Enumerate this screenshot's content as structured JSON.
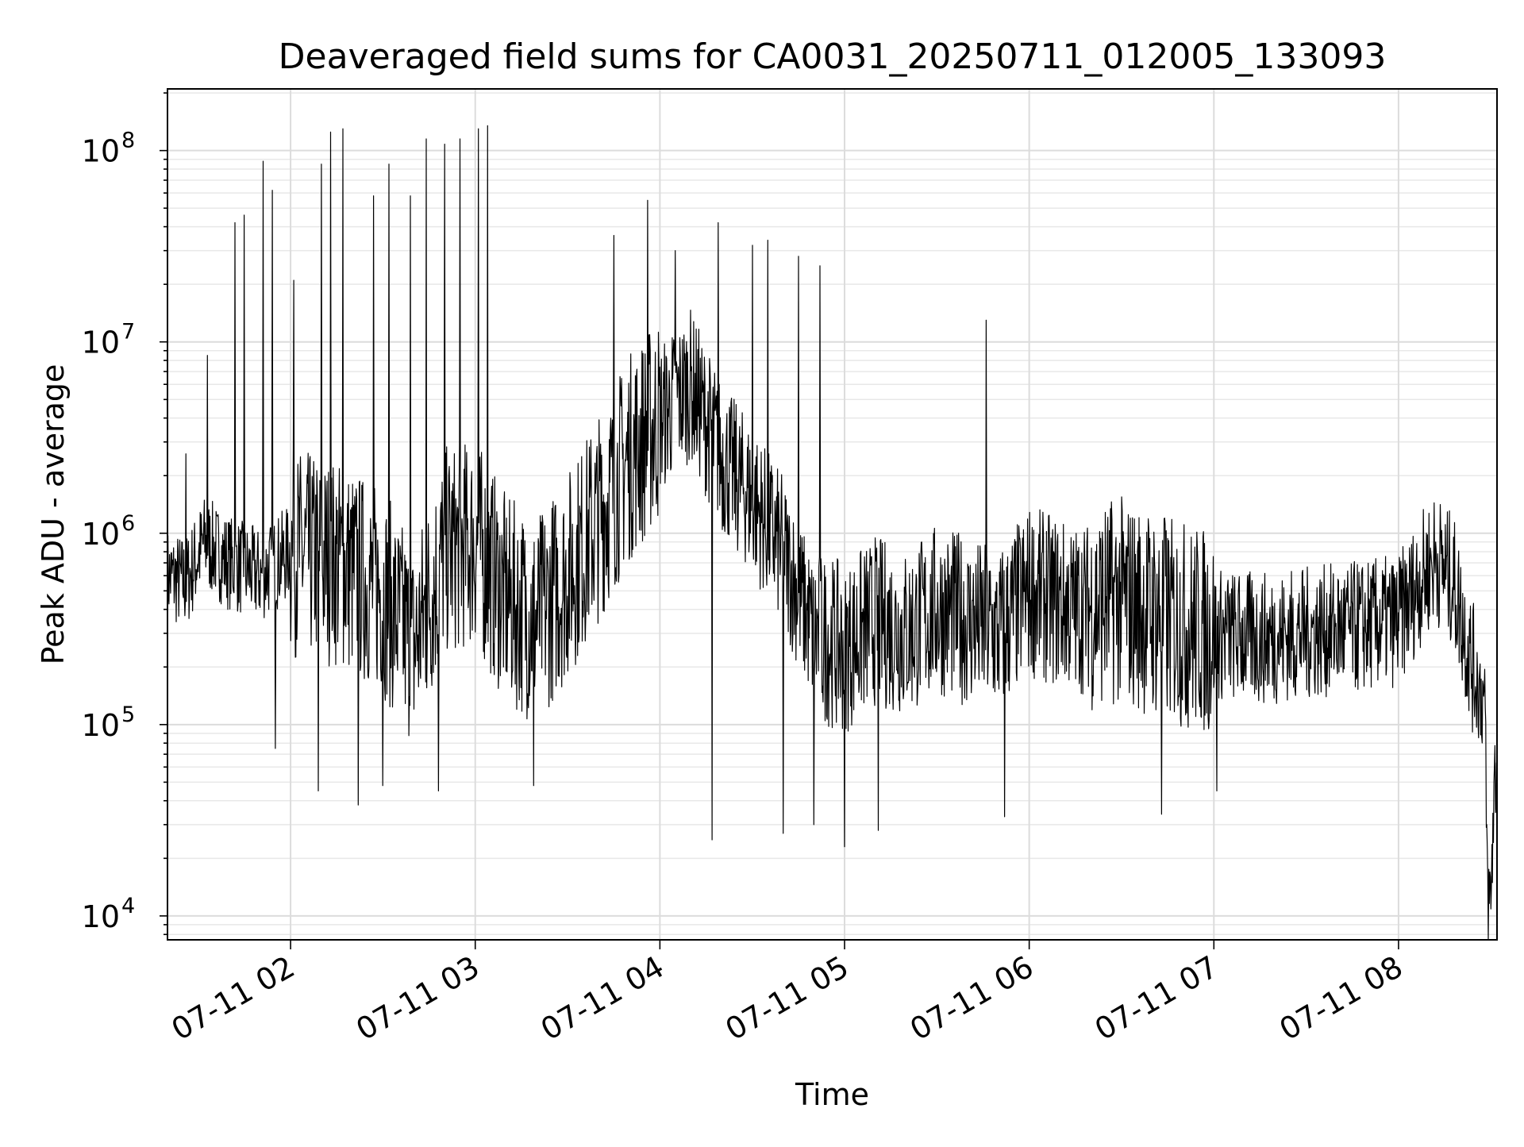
{
  "chart_data": {
    "type": "line",
    "title": "Deaveraged field sums for CA0031_20250711_012005_133093",
    "xlabel": "Time",
    "ylabel": "Peak ADU - average",
    "x_axis": {
      "kind": "datetime",
      "range": [
        "2025-07-11 01:20",
        "2025-07-11 08:32"
      ],
      "ticks": [
        {
          "value": "2025-07-11 02:00",
          "label": "07-11 02"
        },
        {
          "value": "2025-07-11 03:00",
          "label": "07-11 03"
        },
        {
          "value": "2025-07-11 04:00",
          "label": "07-11 04"
        },
        {
          "value": "2025-07-11 05:00",
          "label": "07-11 05"
        },
        {
          "value": "2025-07-11 06:00",
          "label": "07-11 06"
        },
        {
          "value": "2025-07-11 07:00",
          "label": "07-11 07"
        },
        {
          "value": "2025-07-11 08:00",
          "label": "07-11 08"
        }
      ],
      "tick_label_rotation_deg": 30
    },
    "y_axis": {
      "scale": "log",
      "range": [
        7500,
        210000000
      ],
      "ticks": [
        {
          "value": 10000,
          "base": "10",
          "exp": "4"
        },
        {
          "value": 100000,
          "base": "10",
          "exp": "5"
        },
        {
          "value": 1000000,
          "base": "10",
          "exp": "6"
        },
        {
          "value": 10000000,
          "base": "10",
          "exp": "7"
        },
        {
          "value": 100000000,
          "base": "10",
          "exp": "8"
        }
      ]
    },
    "grid": true,
    "minor_grid": true,
    "line_color": "#000000",
    "series": [
      {
        "points": [
          [
            "2025-07-11 01:20",
            600000
          ],
          [
            "2025-07-11 01:26",
            550000
          ],
          [
            "2025-07-11 01:32",
            900000
          ],
          [
            "2025-07-11 01:40",
            700000
          ],
          [
            "2025-07-11 01:50",
            600000
          ],
          [
            "2025-07-11 02:00",
            800000
          ],
          [
            "2025-07-11 02:15",
            700000
          ],
          [
            "2025-07-11 02:30",
            500000
          ],
          [
            "2025-07-11 02:40",
            250000
          ],
          [
            "2025-07-11 02:50",
            800000
          ],
          [
            "2025-07-11 03:00",
            900000
          ],
          [
            "2025-07-11 03:10",
            450000
          ],
          [
            "2025-07-11 03:20",
            350000
          ],
          [
            "2025-07-11 03:30",
            600000
          ],
          [
            "2025-07-11 03:40",
            1200000
          ],
          [
            "2025-07-11 03:50",
            2500000
          ],
          [
            "2025-07-11 04:00",
            4000000
          ],
          [
            "2025-07-11 04:10",
            6000000
          ],
          [
            "2025-07-11 04:20",
            2500000
          ],
          [
            "2025-07-11 04:30",
            1500000
          ],
          [
            "2025-07-11 04:40",
            800000
          ],
          [
            "2025-07-11 04:50",
            300000
          ],
          [
            "2025-07-11 05:00",
            250000
          ],
          [
            "2025-07-11 05:10",
            350000
          ],
          [
            "2025-07-11 05:20",
            300000
          ],
          [
            "2025-07-11 05:30",
            400000
          ],
          [
            "2025-07-11 05:40",
            350000
          ],
          [
            "2025-07-11 05:50",
            300000
          ],
          [
            "2025-07-11 06:00",
            500000
          ],
          [
            "2025-07-11 06:15",
            400000
          ],
          [
            "2025-07-11 06:30",
            450000
          ],
          [
            "2025-07-11 06:45",
            350000
          ],
          [
            "2025-07-11 07:00",
            300000
          ],
          [
            "2025-07-11 07:15",
            280000
          ],
          [
            "2025-07-11 07:30",
            300000
          ],
          [
            "2025-07-11 07:45",
            320000
          ],
          [
            "2025-07-11 08:00",
            350000
          ],
          [
            "2025-07-11 08:08",
            600000
          ],
          [
            "2025-07-11 08:12",
            750000
          ],
          [
            "2025-07-11 08:18",
            550000
          ],
          [
            "2025-07-11 08:24",
            200000
          ],
          [
            "2025-07-11 08:28",
            130000
          ],
          [
            "2025-07-11 08:29",
            11500
          ],
          [
            "2025-07-11 08:30",
            12000
          ],
          [
            "2025-07-11 08:31",
            45000
          ],
          [
            "2025-07-11 08:32",
            65000
          ]
        ],
        "spikes": [
          [
            "2025-07-11 01:26",
            2600000
          ],
          [
            "2025-07-11 01:33",
            8500000
          ],
          [
            "2025-07-11 01:42",
            42000000
          ],
          [
            "2025-07-11 01:45",
            46000000
          ],
          [
            "2025-07-11 01:51",
            88000000
          ],
          [
            "2025-07-11 01:54",
            62000000
          ],
          [
            "2025-07-11 02:01",
            21000000
          ],
          [
            "2025-07-11 02:10",
            85000000
          ],
          [
            "2025-07-11 02:13",
            125000000
          ],
          [
            "2025-07-11 02:17",
            130000000
          ],
          [
            "2025-07-11 02:27",
            58000000
          ],
          [
            "2025-07-11 02:32",
            85000000
          ],
          [
            "2025-07-11 02:39",
            58000000
          ],
          [
            "2025-07-11 02:44",
            115000000
          ],
          [
            "2025-07-11 02:50",
            108000000
          ],
          [
            "2025-07-11 02:55",
            115000000
          ],
          [
            "2025-07-11 03:01",
            130000000
          ],
          [
            "2025-07-11 03:04",
            135000000
          ],
          [
            "2025-07-11 03:45",
            36000000
          ],
          [
            "2025-07-11 03:56",
            55000000
          ],
          [
            "2025-07-11 04:05",
            30000000
          ],
          [
            "2025-07-11 04:19",
            42000000
          ],
          [
            "2025-07-11 04:30",
            32000000
          ],
          [
            "2025-07-11 04:35",
            34000000
          ],
          [
            "2025-07-11 04:45",
            28000000
          ],
          [
            "2025-07-11 04:52",
            25000000
          ],
          [
            "2025-07-11 05:46",
            13000000
          ],
          [
            "2025-07-11 06:28",
            850000
          ],
          [
            "2025-07-11 06:44",
            1200000
          ],
          [
            "2025-07-11 08:12",
            900000
          ]
        ],
        "dips": [
          [
            "2025-07-11 01:55",
            75000
          ],
          [
            "2025-07-11 02:09",
            45000
          ],
          [
            "2025-07-11 02:22",
            38000
          ],
          [
            "2025-07-11 02:30",
            48000
          ],
          [
            "2025-07-11 02:48",
            45000
          ],
          [
            "2025-07-11 03:19",
            48000
          ],
          [
            "2025-07-11 04:17",
            25000
          ],
          [
            "2025-07-11 04:40",
            27000
          ],
          [
            "2025-07-11 04:50",
            30000
          ],
          [
            "2025-07-11 05:00",
            23000
          ],
          [
            "2025-07-11 05:11",
            28000
          ],
          [
            "2025-07-11 05:52",
            33000
          ],
          [
            "2025-07-11 06:43",
            34000
          ],
          [
            "2025-07-11 07:01",
            45000
          ]
        ]
      }
    ]
  }
}
